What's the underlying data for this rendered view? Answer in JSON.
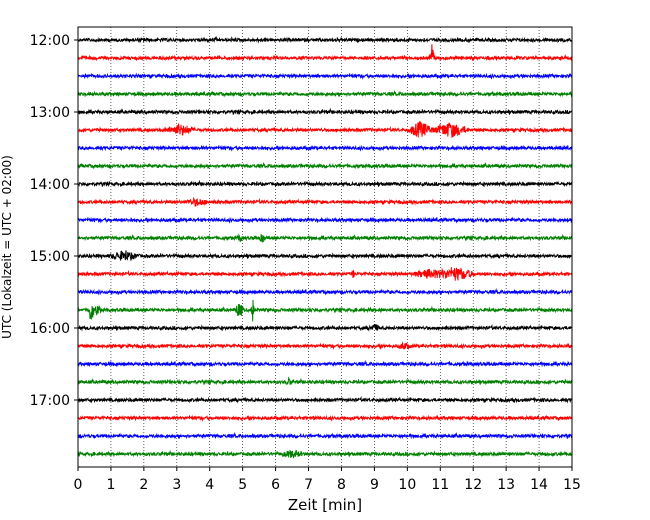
{
  "chart_data": {
    "type": "line",
    "title": "",
    "xlabel": "Zeit  [min]",
    "ylabel": "UTC (Lokalzeit = UTC + 02:00)",
    "xlim": [
      0,
      15
    ],
    "x_ticks": [
      "0",
      "1",
      "2",
      "3",
      "4",
      "5",
      "6",
      "7",
      "8",
      "9",
      "10",
      "11",
      "12",
      "13",
      "14",
      "15"
    ],
    "y_ticks": [
      "12:00",
      "13:00",
      "14:00",
      "15:00",
      "16:00",
      "17:00"
    ],
    "y_tick_traces": [
      0,
      4,
      8,
      12,
      16,
      20
    ],
    "trace_interval_min": 15,
    "grid": "vertical dotted at each minute",
    "trace_colors": [
      "#000000",
      "#ff0000",
      "#0000ff",
      "#008000"
    ],
    "traces": [
      {
        "start": "12:00",
        "events": []
      },
      {
        "start": "12:15",
        "events": [
          {
            "t": 10.75,
            "amp": 14,
            "dur": 0.08
          }
        ]
      },
      {
        "start": "12:30",
        "events": []
      },
      {
        "start": "12:45",
        "events": []
      },
      {
        "start": "13:00",
        "events": []
      },
      {
        "start": "13:15",
        "events": [
          {
            "t": 3.1,
            "amp": 5,
            "dur": 0.5
          },
          {
            "t": 10.4,
            "amp": 8,
            "dur": 0.4
          },
          {
            "t": 11.3,
            "amp": 7,
            "dur": 0.6
          }
        ]
      },
      {
        "start": "13:30",
        "events": []
      },
      {
        "start": "13:45",
        "events": []
      },
      {
        "start": "14:00",
        "events": []
      },
      {
        "start": "14:15",
        "events": [
          {
            "t": 3.6,
            "amp": 3,
            "dur": 0.4
          }
        ]
      },
      {
        "start": "14:30",
        "events": []
      },
      {
        "start": "14:45",
        "events": [
          {
            "t": 4.9,
            "amp": 3,
            "dur": 0.1
          },
          {
            "t": 5.6,
            "amp": 4,
            "dur": 0.1
          }
        ]
      },
      {
        "start": "15:00",
        "events": [
          {
            "t": 1.4,
            "amp": 4,
            "dur": 0.5
          }
        ]
      },
      {
        "start": "15:15",
        "events": [
          {
            "t": 8.35,
            "amp": 4,
            "dur": 0.05
          },
          {
            "t": 10.7,
            "amp": 4,
            "dur": 0.6
          },
          {
            "t": 11.5,
            "amp": 6,
            "dur": 0.6
          }
        ]
      },
      {
        "start": "15:30",
        "events": []
      },
      {
        "start": "15:45",
        "events": [
          {
            "t": 0.4,
            "amp": 14,
            "dur": 0.1
          },
          {
            "t": 0.6,
            "amp": 6,
            "dur": 0.1
          },
          {
            "t": 4.9,
            "amp": 7,
            "dur": 0.15
          },
          {
            "t": 5.3,
            "amp": 14,
            "dur": 0.05
          }
        ]
      },
      {
        "start": "16:00",
        "events": [
          {
            "t": 9.0,
            "amp": 3,
            "dur": 0.2
          }
        ]
      },
      {
        "start": "16:15",
        "events": [
          {
            "t": 9.9,
            "amp": 3,
            "dur": 0.2
          }
        ]
      },
      {
        "start": "16:30",
        "events": []
      },
      {
        "start": "16:45",
        "events": [
          {
            "t": 6.4,
            "amp": 3,
            "dur": 0.1
          }
        ]
      },
      {
        "start": "17:00",
        "events": []
      },
      {
        "start": "17:15",
        "events": []
      },
      {
        "start": "17:30",
        "events": []
      },
      {
        "start": "17:45",
        "events": [
          {
            "t": 6.5,
            "amp": 3,
            "dur": 0.4
          }
        ]
      }
    ]
  }
}
